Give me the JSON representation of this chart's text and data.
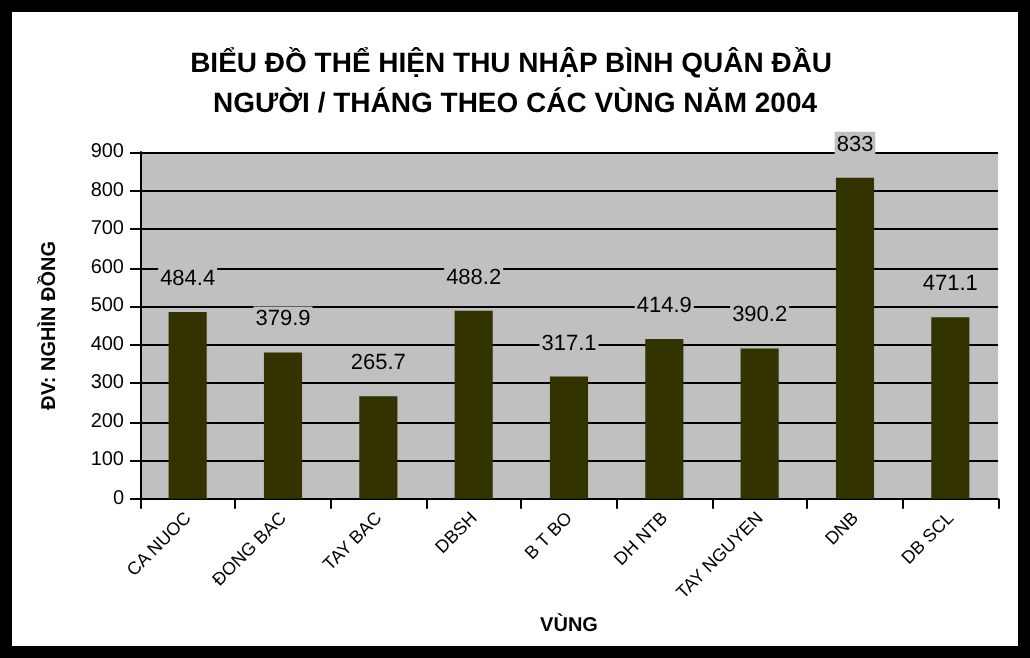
{
  "chart_data": {
    "type": "bar",
    "title": "BIỂU ĐỒ THỂ HIỆN THU NHẬP BÌNH QUÂN ĐẦU NGƯỜI / THÁNG THEO CÁC VÙNG NĂM 2004",
    "xlabel": "VÙNG",
    "ylabel": "ĐV: NGHÌN ĐỒNG",
    "categories": [
      "CA NUOC",
      "ĐONG BAC",
      "TAY BAC",
      "DBSH",
      "B T BO",
      "DH NTB",
      "TAY NGUYEN",
      "DNB",
      "DB SCL"
    ],
    "values": [
      484.4,
      379.9,
      265.7,
      488.2,
      317.1,
      414.9,
      390.2,
      833,
      471.1
    ],
    "color": "#333300",
    "ylim": [
      0,
      900
    ],
    "yticks": [
      0,
      100,
      200,
      300,
      400,
      500,
      600,
      700,
      800,
      900
    ],
    "grid": "y",
    "data_labels": true
  }
}
